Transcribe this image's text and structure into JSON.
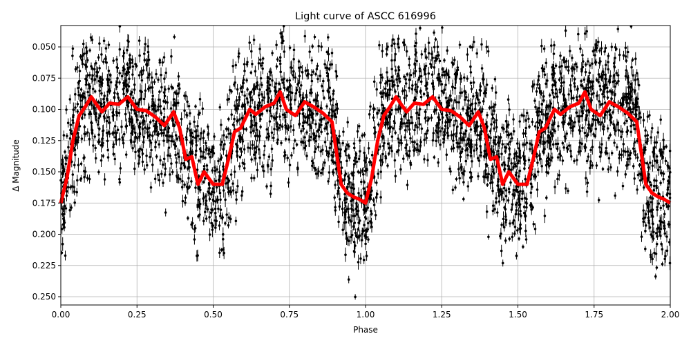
{
  "chart_data": {
    "type": "scatter",
    "title": "Light curve of ASCC 616996",
    "xlabel": "Phase",
    "ylabel": "Δ Magnitude",
    "xlim": [
      0.0,
      2.0
    ],
    "ylim": [
      0.2566,
      0.0329
    ],
    "y_inverted": true,
    "grid": true,
    "x_ticks": [
      "0.00",
      "0.25",
      "0.50",
      "0.75",
      "1.00",
      "1.25",
      "1.50",
      "1.75",
      "2.00"
    ],
    "y_ticks": [
      "0.050",
      "0.075",
      "0.100",
      "0.125",
      "0.150",
      "0.175",
      "0.200",
      "0.225",
      "0.250"
    ],
    "series": [
      {
        "name": "observations",
        "style": "black points with error bars",
        "color": "#000000",
        "note": "dense scatter around model, spread roughly ±0.05 mag"
      },
      {
        "name": "model",
        "style": "thick red line",
        "color": "#ff0000",
        "phase": [
          0.0,
          0.02,
          0.04,
          0.06,
          0.08,
          0.1,
          0.12,
          0.135,
          0.16,
          0.19,
          0.22,
          0.25,
          0.28,
          0.31,
          0.34,
          0.37,
          0.39,
          0.41,
          0.43,
          0.45,
          0.47,
          0.5,
          0.53,
          0.55,
          0.57,
          0.59,
          0.62,
          0.64,
          0.67,
          0.7,
          0.72,
          0.74,
          0.77,
          0.8,
          0.83,
          0.86,
          0.89,
          0.92,
          0.94,
          0.96,
          0.98,
          1.0
        ],
        "mag": [
          0.175,
          0.155,
          0.125,
          0.105,
          0.098,
          0.09,
          0.097,
          0.102,
          0.095,
          0.096,
          0.09,
          0.1,
          0.101,
          0.106,
          0.113,
          0.102,
          0.115,
          0.14,
          0.138,
          0.16,
          0.15,
          0.16,
          0.16,
          0.14,
          0.118,
          0.115,
          0.1,
          0.104,
          0.098,
          0.095,
          0.086,
          0.1,
          0.105,
          0.094,
          0.098,
          0.103,
          0.11,
          0.16,
          0.167,
          0.17,
          0.172,
          0.175
        ],
        "repeats_with_period": 1.0
      }
    ]
  }
}
